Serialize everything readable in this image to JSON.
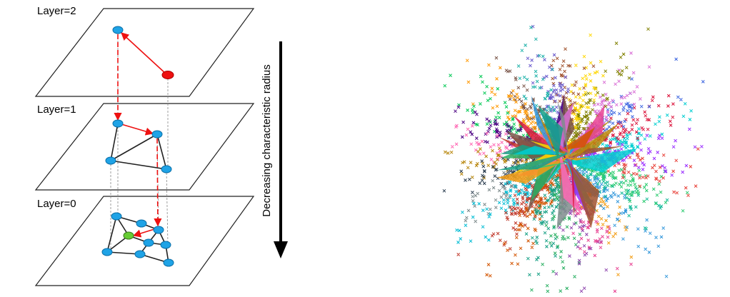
{
  "layers": [
    {
      "label": "Layer=2"
    },
    {
      "label": "Layer=1"
    },
    {
      "label": "Layer=0"
    }
  ],
  "arrow_label": "Decreasing characteristic radius"
}
